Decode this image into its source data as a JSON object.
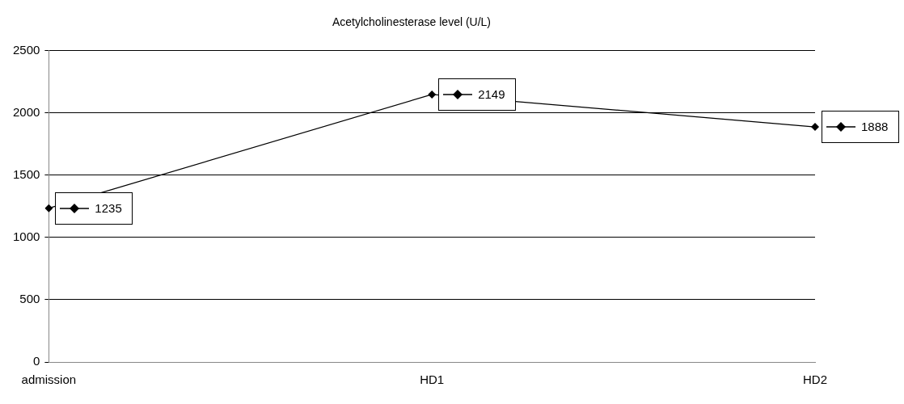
{
  "chart_data": {
    "type": "line",
    "title": "Acetylcholinesterase level (U/L)",
    "categories": [
      "admission",
      "HD1",
      "HD2"
    ],
    "series": [
      {
        "color": "#000000",
        "values": [
          1235,
          2149,
          1888
        ],
        "value_labels": [
          "1235",
          "2149",
          "1888"
        ]
      }
    ],
    "ylim": [
      0,
      2500
    ],
    "yticks": [
      0,
      500,
      1000,
      1500,
      2000,
      2500
    ],
    "grid": "y",
    "legend": false,
    "marker": "diamond",
    "line_style": "solid"
  }
}
